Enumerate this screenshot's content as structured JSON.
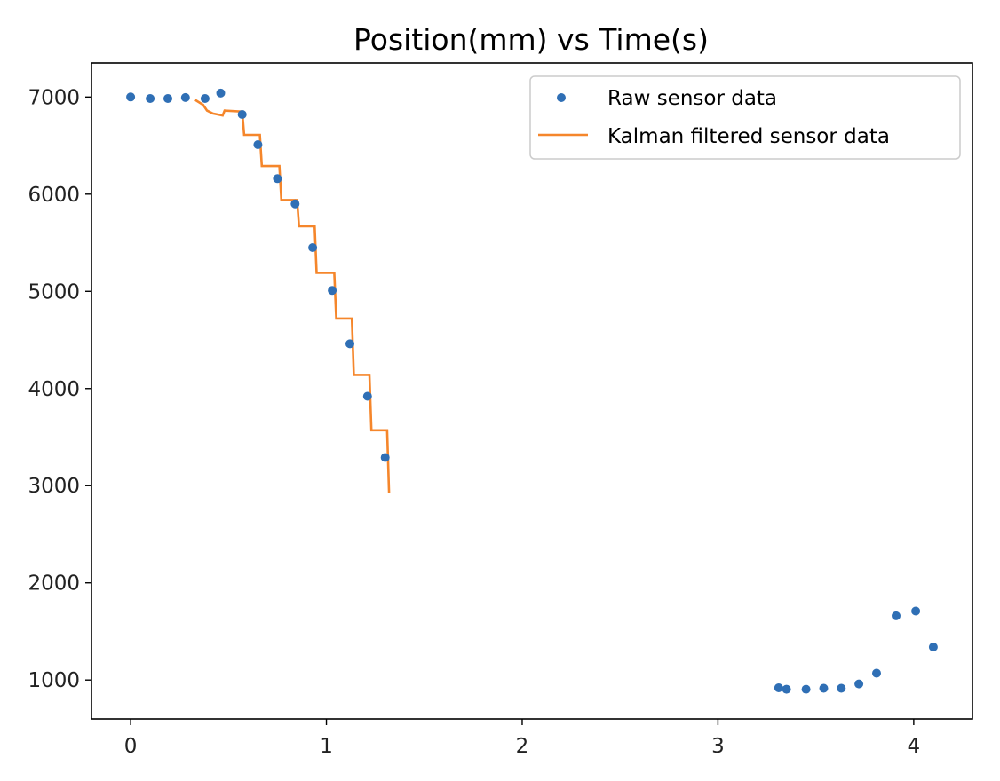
{
  "chart_data": {
    "type": "scatter",
    "title": "Position(mm) vs Time(s)",
    "xlabel": "",
    "ylabel": "",
    "xlim": [
      -0.2,
      4.3
    ],
    "ylim": [
      600,
      7350
    ],
    "xticks": [
      0,
      1,
      2,
      3,
      4
    ],
    "yticks": [
      1000,
      2000,
      3000,
      4000,
      5000,
      6000,
      7000
    ],
    "xtick_labels": [
      "0",
      "1",
      "2",
      "3",
      "4"
    ],
    "ytick_labels": [
      "1000",
      "2000",
      "3000",
      "4000",
      "5000",
      "6000",
      "7000"
    ],
    "grid": false,
    "legend_position": "upper-right",
    "series": [
      {
        "name": "Raw sensor data",
        "type": "scatter",
        "color": "#2f6fb5",
        "points": [
          [
            0.0,
            7000
          ],
          [
            0.1,
            6985
          ],
          [
            0.19,
            6985
          ],
          [
            0.28,
            6995
          ],
          [
            0.38,
            6985
          ],
          [
            0.46,
            7040
          ],
          [
            0.57,
            6820
          ],
          [
            0.65,
            6510
          ],
          [
            0.75,
            6160
          ],
          [
            0.84,
            5900
          ],
          [
            0.93,
            5450
          ],
          [
            1.03,
            5010
          ],
          [
            1.12,
            4460
          ],
          [
            1.21,
            3920
          ],
          [
            1.3,
            3290
          ],
          [
            3.31,
            920
          ],
          [
            3.35,
            905
          ],
          [
            3.45,
            905
          ],
          [
            3.54,
            915
          ],
          [
            3.63,
            915
          ],
          [
            3.72,
            960
          ],
          [
            3.81,
            1070
          ],
          [
            3.91,
            1660
          ],
          [
            4.01,
            1710
          ],
          [
            4.1,
            1340
          ]
        ]
      },
      {
        "name": "Kalman filtered sensor data",
        "type": "line",
        "color": "#f5862b",
        "points": [
          [
            0.33,
            6970
          ],
          [
            0.37,
            6920
          ],
          [
            0.39,
            6860
          ],
          [
            0.42,
            6830
          ],
          [
            0.47,
            6810
          ],
          [
            0.48,
            6860
          ],
          [
            0.57,
            6850
          ],
          [
            0.58,
            6610
          ],
          [
            0.66,
            6610
          ],
          [
            0.67,
            6290
          ],
          [
            0.76,
            6290
          ],
          [
            0.77,
            5940
          ],
          [
            0.85,
            5940
          ],
          [
            0.86,
            5670
          ],
          [
            0.94,
            5670
          ],
          [
            0.95,
            5190
          ],
          [
            1.04,
            5190
          ],
          [
            1.05,
            4720
          ],
          [
            1.13,
            4720
          ],
          [
            1.14,
            4140
          ],
          [
            1.22,
            4140
          ],
          [
            1.23,
            3570
          ],
          [
            1.31,
            3570
          ],
          [
            1.32,
            2920
          ]
        ]
      }
    ]
  }
}
